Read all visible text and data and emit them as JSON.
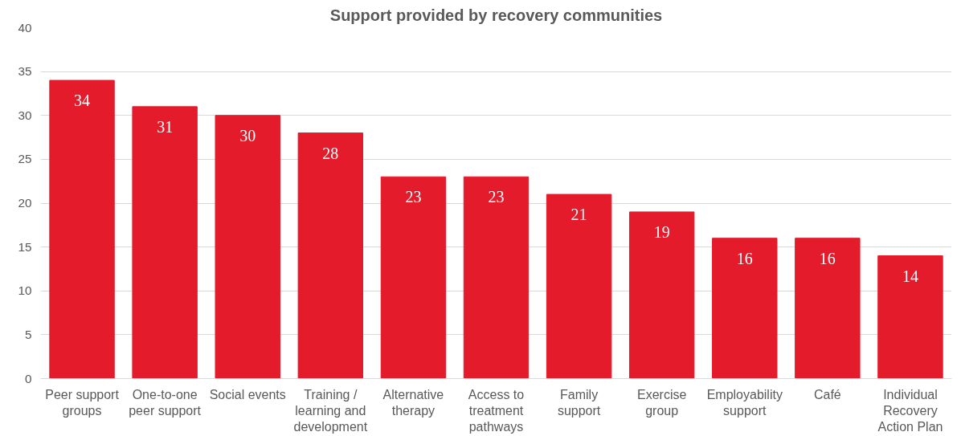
{
  "chart_data": {
    "type": "bar",
    "title": "Support provided by recovery communities",
    "categories": [
      "Peer support groups",
      "One-to-one peer support",
      "Social events",
      "Training / learning and development",
      "Alternative therapy",
      "Access to treatment pathways",
      "Family support",
      "Exercise group",
      "Employability support",
      "Café",
      "Individual Recovery Action Plan"
    ],
    "values": [
      34,
      31,
      30,
      28,
      23,
      23,
      21,
      19,
      16,
      16,
      14
    ],
    "color": "#e31b2b",
    "ylim": [
      0,
      40
    ],
    "yticks": [
      0,
      5,
      10,
      15,
      20,
      25,
      30,
      35,
      40
    ],
    "grid": "y",
    "data_labels": true
  }
}
